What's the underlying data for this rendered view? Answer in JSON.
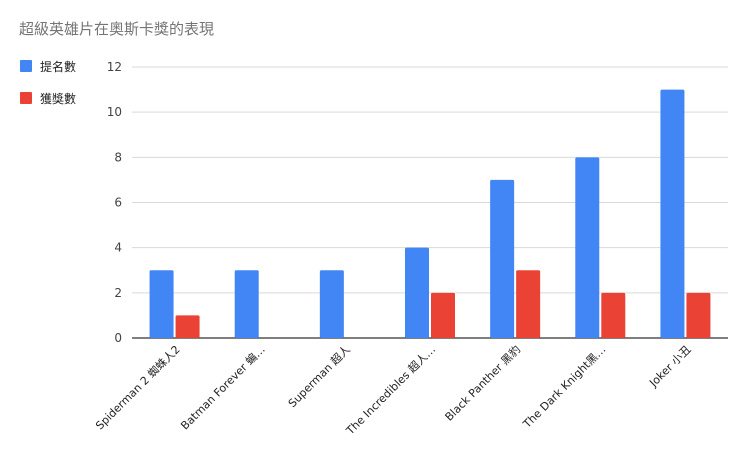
{
  "chart_data": {
    "type": "bar",
    "title": "超級英雄片在奧斯卡獎的表現",
    "categories": [
      "Spiderman 2 蜘蛛人2",
      "Batman Forever 蝙…",
      "Superman 超人",
      "The Incredibles 超人…",
      "Black Panther 黑豹",
      "The Dark Knight黑…",
      "Joker 小丑"
    ],
    "series": [
      {
        "name": "提名數",
        "color": "#4285f4",
        "values": [
          3,
          3,
          3,
          4,
          7,
          8,
          11
        ]
      },
      {
        "name": "獲獎數",
        "color": "#ea4335",
        "values": [
          1,
          0,
          0,
          2,
          3,
          2,
          2
        ]
      }
    ],
    "ylim": [
      0,
      12
    ],
    "yticks": [
      0,
      2,
      4,
      6,
      8,
      10,
      12
    ],
    "grid": true,
    "legend_position": "left"
  }
}
